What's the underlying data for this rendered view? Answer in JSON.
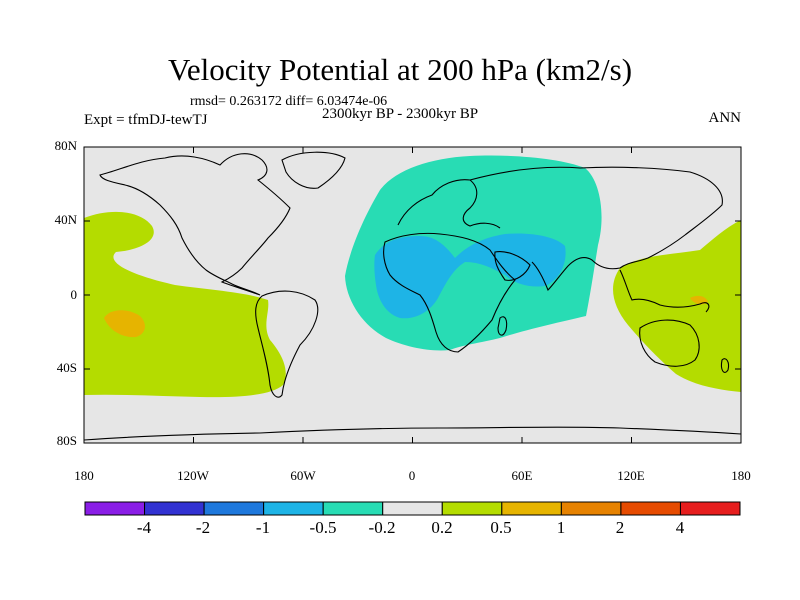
{
  "title": "Velocity Potential at 200 hPa (km2/s)",
  "stats": "rmsd= 0.263172 diff= 6.03474e-06",
  "period": "2300kyr BP - 2300kyr BP",
  "experiment": "Expt = tfmDJ-tewTJ",
  "season": "ANN",
  "y_axis": {
    "ticks": [
      {
        "label": "80N",
        "lat": 80
      },
      {
        "label": "40N",
        "lat": 40
      },
      {
        "label": "0",
        "lat": 0
      },
      {
        "label": "40S",
        "lat": -40
      },
      {
        "label": "80S",
        "lat": -80
      }
    ]
  },
  "x_axis": {
    "ticks": [
      {
        "label": "180",
        "lon": -180
      },
      {
        "label": "120W",
        "lon": -120
      },
      {
        "label": "60W",
        "lon": -60
      },
      {
        "label": "0",
        "lon": 0
      },
      {
        "label": "60E",
        "lon": 60
      },
      {
        "label": "120E",
        "lon": 120
      },
      {
        "label": "180",
        "lon": 180
      }
    ]
  },
  "colorbar": {
    "colors": [
      "#8a1ee6",
      "#3232d2",
      "#1e78dc",
      "#1eb4e6",
      "#28dcb4",
      "#e6e6e6",
      "#b4dc00",
      "#e6b400",
      "#e68200",
      "#e64b00",
      "#e61e1e"
    ],
    "labels": [
      "-4",
      "-2",
      "-1",
      "-0.5",
      "-0.2",
      "0.2",
      "0.5",
      "1",
      "2",
      "4"
    ]
  },
  "colors": {
    "background": "#e6e6e6",
    "negative_weak": "#28dcb4",
    "negative_moderate": "#1eb4e6",
    "positive_weak": "#b4dc00",
    "positive_moderate": "#e6b400"
  }
}
